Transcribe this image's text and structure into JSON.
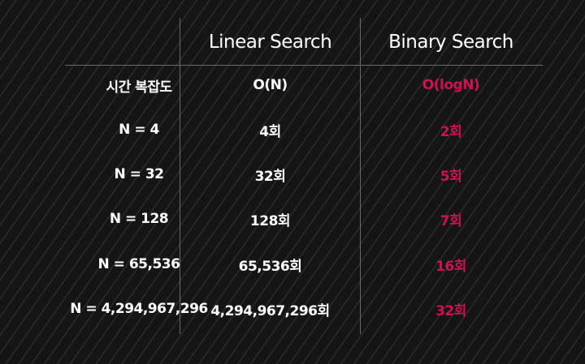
{
  "table": {
    "headers": [
      "",
      "Linear Search",
      "Binary Search"
    ],
    "rows": [
      {
        "label": "시간 복잡도",
        "linear": "O(N)",
        "binary": "O(logN)"
      },
      {
        "label": "N = 4",
        "linear": "4회",
        "binary": "2회"
      },
      {
        "label": "N = 32",
        "linear": "32회",
        "binary": "5회"
      },
      {
        "label": "N = 128",
        "linear": "128회",
        "binary": "7회"
      },
      {
        "label": "N = 65,536",
        "linear": "65,536회",
        "binary": "16회"
      },
      {
        "label": "N = 4,294,967,296",
        "linear": "4,294,967,296회",
        "binary": "32회"
      }
    ]
  },
  "colors": {
    "background": "#151515",
    "stripe": "#262626",
    "text": "#ffffff",
    "accent": "#d0114f",
    "grid_line": "#6a6a6a"
  }
}
